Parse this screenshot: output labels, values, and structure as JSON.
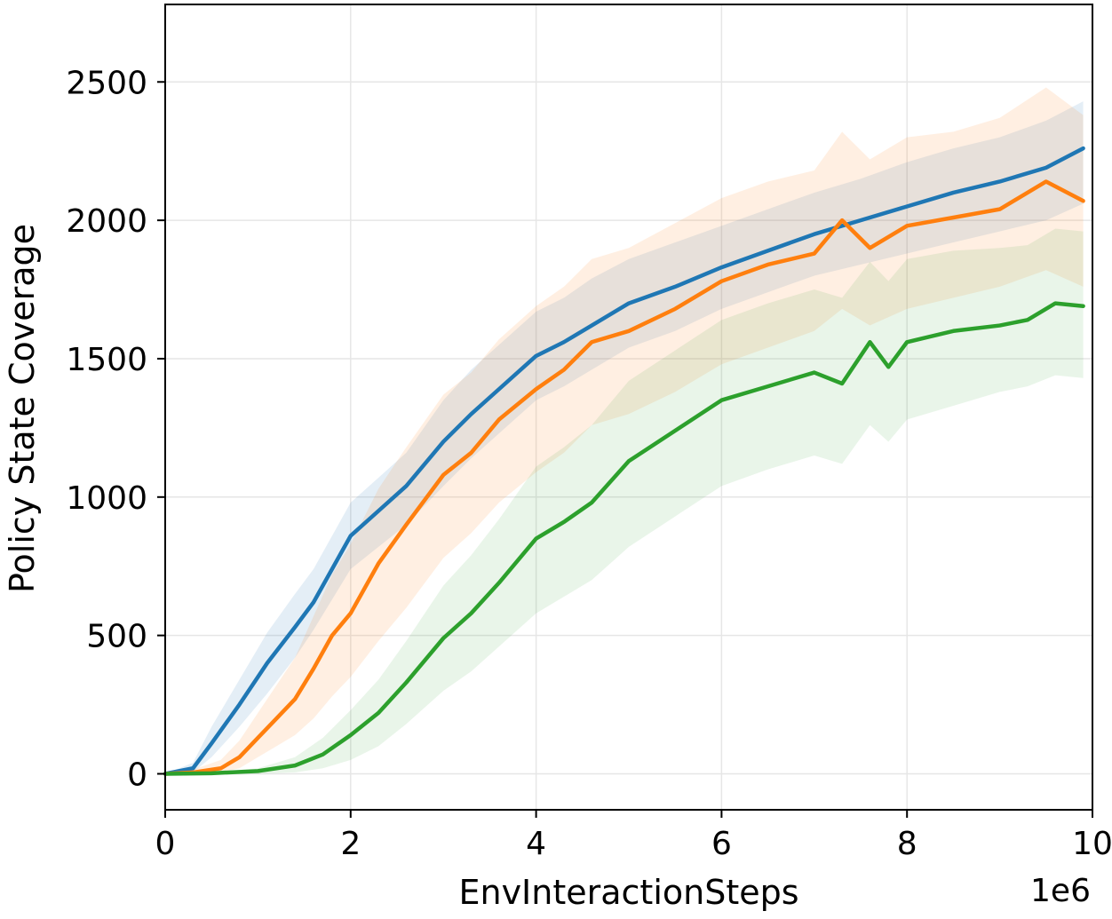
{
  "chart_data": {
    "type": "line",
    "title": "",
    "xlabel": "EnvInteractionSteps",
    "ylabel": "Policy State Coverage",
    "x_offset_label": "1e6",
    "xlim": [
      0,
      10
    ],
    "ylim": [
      -130,
      2780
    ],
    "xticks": [
      0,
      2,
      4,
      6,
      8,
      10
    ],
    "yticks": [
      0,
      500,
      1000,
      1500,
      2000,
      2500
    ],
    "grid": true,
    "legend": "none",
    "series": [
      {
        "color": "#1f77b4",
        "band_opacity": 0.12,
        "x": [
          0,
          0.3,
          0.5,
          0.8,
          1.1,
          1.4,
          1.6,
          2.0,
          2.3,
          2.6,
          3.0,
          3.3,
          3.6,
          4.0,
          4.3,
          4.6,
          5.0,
          5.5,
          6.0,
          6.5,
          7.0,
          7.5,
          8.0,
          8.5,
          9.0,
          9.5,
          9.9
        ],
        "values": [
          0,
          20,
          110,
          250,
          400,
          530,
          620,
          860,
          950,
          1040,
          1200,
          1300,
          1390,
          1510,
          1560,
          1620,
          1700,
          1760,
          1830,
          1890,
          1950,
          2000,
          2050,
          2100,
          2140,
          2190,
          2260
        ],
        "lower": [
          0,
          5,
          60,
          170,
          290,
          420,
          520,
          740,
          820,
          900,
          1040,
          1140,
          1230,
          1350,
          1400,
          1460,
          1540,
          1600,
          1680,
          1740,
          1800,
          1840,
          1880,
          1920,
          1960,
          2000,
          2060
        ],
        "upper": [
          0,
          40,
          170,
          340,
          510,
          650,
          740,
          980,
          1070,
          1160,
          1350,
          1460,
          1550,
          1670,
          1720,
          1790,
          1860,
          1920,
          1980,
          2040,
          2100,
          2150,
          2210,
          2260,
          2300,
          2360,
          2430
        ]
      },
      {
        "color": "#ff7f0e",
        "band_opacity": 0.12,
        "x": [
          0,
          0.3,
          0.6,
          0.8,
          1.0,
          1.2,
          1.4,
          1.6,
          1.8,
          2.0,
          2.3,
          2.6,
          3.0,
          3.3,
          3.6,
          4.0,
          4.3,
          4.6,
          5.0,
          5.5,
          6.0,
          6.5,
          7.0,
          7.3,
          7.6,
          8.0,
          8.5,
          9.0,
          9.5,
          9.9
        ],
        "values": [
          0,
          5,
          20,
          60,
          130,
          200,
          270,
          380,
          500,
          580,
          760,
          900,
          1080,
          1160,
          1280,
          1390,
          1460,
          1560,
          1600,
          1680,
          1780,
          1840,
          1880,
          2000,
          1900,
          1980,
          2010,
          2040,
          2140,
          2070
        ],
        "lower": [
          0,
          0,
          5,
          20,
          60,
          100,
          140,
          200,
          280,
          350,
          480,
          600,
          780,
          870,
          980,
          1090,
          1160,
          1260,
          1300,
          1380,
          1480,
          1540,
          1600,
          1680,
          1620,
          1680,
          1720,
          1760,
          1820,
          1760
        ],
        "upper": [
          0,
          15,
          50,
          120,
          220,
          320,
          420,
          570,
          720,
          830,
          1030,
          1180,
          1370,
          1450,
          1570,
          1690,
          1760,
          1860,
          1900,
          1990,
          2080,
          2140,
          2180,
          2320,
          2220,
          2300,
          2320,
          2370,
          2480,
          2380
        ]
      },
      {
        "color": "#2ca02c",
        "band_opacity": 0.1,
        "x": [
          0,
          0.5,
          1.0,
          1.4,
          1.7,
          2.0,
          2.3,
          2.6,
          3.0,
          3.3,
          3.6,
          4.0,
          4.3,
          4.6,
          5.0,
          5.5,
          6.0,
          6.5,
          7.0,
          7.3,
          7.6,
          7.8,
          8.0,
          8.5,
          9.0,
          9.3,
          9.6,
          9.9
        ],
        "values": [
          0,
          2,
          10,
          30,
          70,
          140,
          220,
          330,
          490,
          580,
          690,
          850,
          910,
          980,
          1130,
          1240,
          1350,
          1400,
          1450,
          1410,
          1560,
          1470,
          1560,
          1600,
          1620,
          1640,
          1700,
          1690
        ],
        "lower": [
          0,
          0,
          0,
          5,
          20,
          50,
          100,
          180,
          300,
          370,
          460,
          580,
          640,
          700,
          820,
          930,
          1040,
          1100,
          1150,
          1120,
          1260,
          1200,
          1280,
          1330,
          1380,
          1400,
          1440,
          1430
        ],
        "upper": [
          0,
          5,
          20,
          60,
          130,
          230,
          340,
          480,
          680,
          790,
          920,
          1110,
          1180,
          1260,
          1420,
          1530,
          1640,
          1700,
          1750,
          1720,
          1850,
          1780,
          1860,
          1890,
          1900,
          1910,
          1970,
          1960
        ]
      }
    ]
  }
}
